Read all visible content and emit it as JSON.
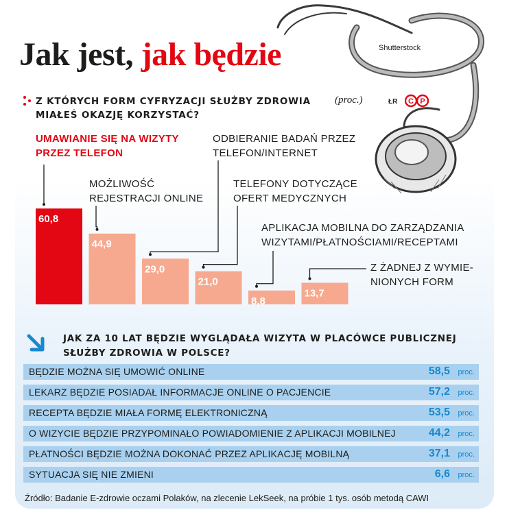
{
  "header": {
    "title_part1": "Jak jest,",
    "title_part2": "jak będzie",
    "image_credit": "Shutterstock"
  },
  "question1": {
    "text": "Z których form cyfryzacji służby zdrowia miałeś okazję korzystać?",
    "unit": "(proc.)",
    "author": "ŁR",
    "logo_text": "©P"
  },
  "chart_data": [
    {
      "type": "bar",
      "categories": [
        "UMAWIANIE SIĘ NA WIZYTY PRZEZ TELEFON",
        "MOŻLIWOŚĆ REJESTRACJI ONLINE",
        "ODBIERANIE BADAŃ PRZEZ TELEFON/INTERNET",
        "TELEFONY DOTYCZĄCE OFERT MEDYCZNYCH",
        "APLIKACJA MOBILNA DO ZARZĄDZANIA WIZYTAMI/PŁATNOŚCIAMI/RECEPTAMI",
        "Z ŻADNEJ Z WYMIENIONYCH FORM"
      ],
      "category_lines": [
        [
          "UMAWIANIE SIĘ NA WIZYTY",
          "PRZEZ TELEFON"
        ],
        [
          "MOŻLIWOŚĆ",
          "REJESTRACJI ONLINE"
        ],
        [
          "ODBIERANIE BADAŃ PRZEZ",
          "TELEFON/INTERNET"
        ],
        [
          "TELEFONY DOTYCZĄCE",
          "OFERT MEDYCZNYCH"
        ],
        [
          "APLIKACJA MOBILNA DO ZARZĄDZANIA",
          "WIZYTAMI/PŁATNOŚCIAMI/RECEPTAMI"
        ],
        [
          "Z ŻADNEJ Z WYMIE-",
          "NIONYCH FORM"
        ]
      ],
      "values": [
        60.8,
        44.9,
        29.0,
        21.0,
        8.8,
        13.7
      ],
      "value_labels": [
        "60,8",
        "44,9",
        "29,0",
        "21,0",
        "8,8",
        "13,7"
      ],
      "highlight_index": 0,
      "colors": {
        "highlight": "#e30613",
        "default": "#f6a98f"
      },
      "unit": "proc."
    },
    {
      "type": "table",
      "title": "Jak za 10 lat będzie wyglądała wizyta w placówce publicznej służby zdrowia w Polsce?",
      "rows": [
        {
          "label": "BĘDZIE MOŻNA SIĘ UMOWIĆ ONLINE",
          "value": 58.5,
          "value_label": "58,5",
          "unit": "proc."
        },
        {
          "label": "LEKARZ BĘDZIE POSIADAŁ INFORMACJE ONLINE O PACJENCIE",
          "value": 57.2,
          "value_label": "57,2",
          "unit": "proc."
        },
        {
          "label": "RECEPTA BĘDZIE MIAŁA FORMĘ ELEKTRONICZNĄ",
          "value": 53.5,
          "value_label": "53,5",
          "unit": "proc."
        },
        {
          "label": "O WIZYCIE BĘDZIE PRZYPOMINAŁO POWIADOMIENIE Z APLIKACJI MOBILNEJ",
          "value": 44.2,
          "value_label": "44,2",
          "unit": "proc."
        },
        {
          "label": "PŁATNOŚCI BĘDZIE MOŻNA DOKONAĆ PRZEZ APLIKACJĘ MOBILNĄ",
          "value": 37.1,
          "value_label": "37,1",
          "unit": "proc."
        },
        {
          "label": "SYTUACJA SIĘ NIE ZMIENI",
          "value": 6.6,
          "value_label": "6,6",
          "unit": "proc."
        }
      ],
      "colors": {
        "row_bg": "#a9d1ef",
        "value": "#1789cf"
      }
    }
  ],
  "footer": {
    "source": "Źródło: Badanie E-zdrowie oczami Polaków, na zlecenie LekSeek, na próbie 1 tys. osób metodą CAWI"
  },
  "icons": {
    "question1_marker": "red-dots-icon",
    "question2_marker": "arrow-down-right-icon",
    "illustration": "stethoscope-icon"
  }
}
